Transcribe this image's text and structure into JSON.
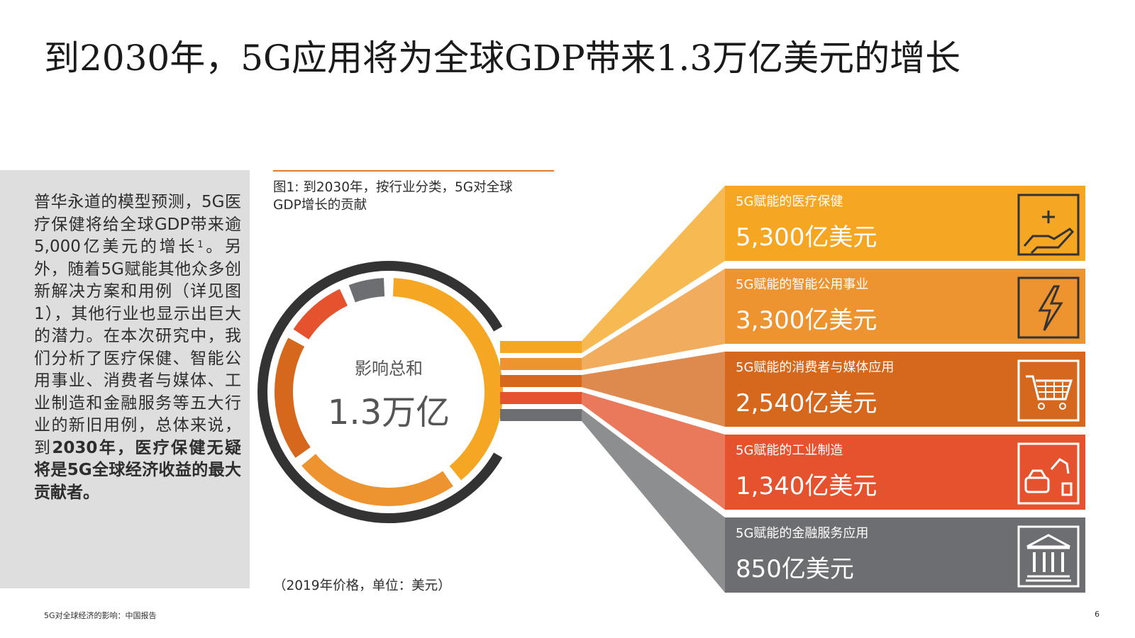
{
  "title": "到2030年，5G应用将为全球GDP带来1.3万亿美元的增长",
  "sidebar": {
    "text_plain_1": "普华永道的模型预测，5G医疗保健将给全球GDP带来逾5,000亿美元的增长",
    "footnote_mark": "1",
    "text_plain_2": "。另外，随着5G赋能其他众多创新解决方案和用例（详见图1），其他行业也显示出巨大的潜力。在本次研究中，我们分析了医疗保健、智能公用事业、消费者与媒体、工业制造和金融服务等五大行业的新旧用例，总体来说，到",
    "text_bold": "2030年，医疗保健无疑将是5G全球经济收益的最大贡献者。"
  },
  "figure": {
    "caption": "图1: 到2030年，按行业分类，5G对全球GDP增长的贡献",
    "price_note": "（2019年价格，单位：美元）"
  },
  "footer": {
    "left": "5G对全球经济的影响：中国报告",
    "page_number": "6"
  },
  "chart_data": {
    "type": "pie",
    "center_label": "影响总和",
    "center_value": "1.3万亿",
    "categories": [
      "5G赋能的医疗保健",
      "5G赋能的智能公用事业",
      "5G赋能的消费者与媒体应用",
      "5G赋能的工业制造",
      "5G赋能的金融服务应用"
    ],
    "values": [
      5300,
      3300,
      2540,
      1340,
      850
    ],
    "value_labels": [
      "5,300亿美元",
      "3,300亿美元",
      "2,540亿美元",
      "1,340亿美元",
      "850亿美元"
    ],
    "unit": "亿美元",
    "colors": [
      "#f5a623",
      "#ed9430",
      "#d5681c",
      "#e4532e",
      "#6d6e71"
    ],
    "icons": [
      "healthcare-hand-plus-icon",
      "lightning-bolt-icon",
      "shopping-cart-icon",
      "factory-robot-icon",
      "bank-building-icon"
    ]
  }
}
